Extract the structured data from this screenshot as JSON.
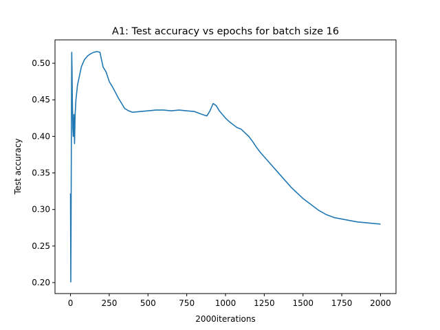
{
  "chart_data": {
    "type": "line",
    "title": "A1: Test accuracy vs epochs for batch size 16",
    "xlabel": "2000iterations",
    "ylabel": "Test accuracy",
    "xlim": [
      -100,
      2100
    ],
    "ylim": [
      0.185,
      0.532
    ],
    "xticks": [
      0,
      250,
      500,
      750,
      1000,
      1250,
      1500,
      1750,
      2000
    ],
    "yticks": [
      0.2,
      0.25,
      0.3,
      0.35,
      0.4,
      0.45,
      0.5
    ],
    "ytick_labels": [
      "0.20",
      "0.25",
      "0.30",
      "0.35",
      "0.40",
      "0.45",
      "0.50"
    ],
    "grid": false,
    "legend": "none",
    "colors": {
      "series": "#1f77b4"
    },
    "series": [
      {
        "points": [
          [
            0,
            0.322
          ],
          [
            2,
            0.201
          ],
          [
            4,
            0.3
          ],
          [
            6,
            0.42
          ],
          [
            8,
            0.515
          ],
          [
            10,
            0.49
          ],
          [
            12,
            0.45
          ],
          [
            15,
            0.41
          ],
          [
            18,
            0.4
          ],
          [
            22,
            0.43
          ],
          [
            26,
            0.39
          ],
          [
            30,
            0.43
          ],
          [
            35,
            0.45
          ],
          [
            45,
            0.47
          ],
          [
            55,
            0.48
          ],
          [
            70,
            0.495
          ],
          [
            90,
            0.505
          ],
          [
            110,
            0.51
          ],
          [
            130,
            0.513
          ],
          [
            150,
            0.515
          ],
          [
            170,
            0.516
          ],
          [
            190,
            0.515
          ],
          [
            200,
            0.505
          ],
          [
            210,
            0.495
          ],
          [
            230,
            0.488
          ],
          [
            250,
            0.475
          ],
          [
            270,
            0.468
          ],
          [
            290,
            0.46
          ],
          [
            310,
            0.452
          ],
          [
            330,
            0.445
          ],
          [
            350,
            0.438
          ],
          [
            375,
            0.435
          ],
          [
            400,
            0.433
          ],
          [
            450,
            0.434
          ],
          [
            500,
            0.435
          ],
          [
            550,
            0.436
          ],
          [
            600,
            0.436
          ],
          [
            650,
            0.435
          ],
          [
            700,
            0.436
          ],
          [
            750,
            0.435
          ],
          [
            800,
            0.434
          ],
          [
            850,
            0.43
          ],
          [
            880,
            0.428
          ],
          [
            900,
            0.435
          ],
          [
            920,
            0.445
          ],
          [
            940,
            0.442
          ],
          [
            960,
            0.435
          ],
          [
            980,
            0.43
          ],
          [
            1000,
            0.425
          ],
          [
            1025,
            0.42
          ],
          [
            1050,
            0.416
          ],
          [
            1075,
            0.412
          ],
          [
            1100,
            0.41
          ],
          [
            1125,
            0.405
          ],
          [
            1150,
            0.4
          ],
          [
            1175,
            0.393
          ],
          [
            1200,
            0.385
          ],
          [
            1225,
            0.378
          ],
          [
            1250,
            0.372
          ],
          [
            1275,
            0.366
          ],
          [
            1300,
            0.36
          ],
          [
            1325,
            0.354
          ],
          [
            1350,
            0.348
          ],
          [
            1375,
            0.342
          ],
          [
            1400,
            0.336
          ],
          [
            1425,
            0.33
          ],
          [
            1450,
            0.325
          ],
          [
            1475,
            0.32
          ],
          [
            1500,
            0.315
          ],
          [
            1525,
            0.311
          ],
          [
            1550,
            0.307
          ],
          [
            1575,
            0.303
          ],
          [
            1600,
            0.299
          ],
          [
            1625,
            0.296
          ],
          [
            1650,
            0.293
          ],
          [
            1675,
            0.291
          ],
          [
            1700,
            0.289
          ],
          [
            1750,
            0.287
          ],
          [
            1800,
            0.285
          ],
          [
            1850,
            0.283
          ],
          [
            1900,
            0.282
          ],
          [
            1950,
            0.281
          ],
          [
            2000,
            0.28
          ]
        ]
      }
    ]
  }
}
